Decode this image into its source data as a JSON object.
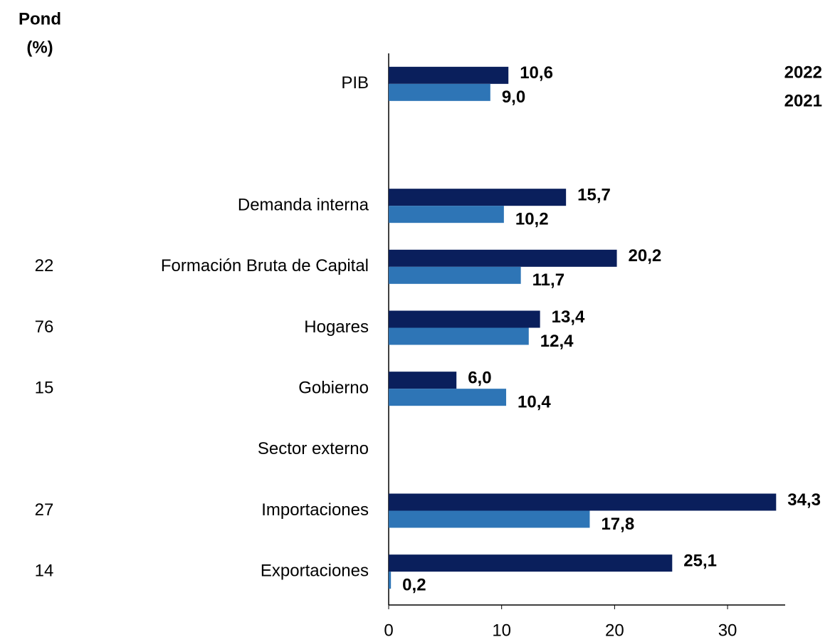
{
  "chart_data": {
    "type": "bar",
    "orientation": "horizontal",
    "weights_title": [
      "Pond",
      "(%)"
    ],
    "categories": [
      "PIB",
      null,
      "Demanda interna",
      "Formación Bruta de Capital",
      "Hogares",
      "Gobierno",
      "Sector externo",
      "Importaciones",
      "Exportaciones"
    ],
    "weights": [
      null,
      null,
      null,
      22,
      76,
      15,
      null,
      27,
      14
    ],
    "series": [
      {
        "name": "2022",
        "color": "#0a1f5c",
        "values": [
          10.6,
          null,
          15.7,
          20.2,
          13.4,
          6.0,
          null,
          34.3,
          25.1
        ],
        "value_labels": [
          "10,6",
          null,
          "15,7",
          "20,2",
          "13,4",
          "6,0",
          null,
          "34,3",
          "25,1"
        ]
      },
      {
        "name": "2021",
        "color": "#2e75b6",
        "values": [
          9.0,
          null,
          10.2,
          11.7,
          12.4,
          10.4,
          null,
          17.8,
          0.2
        ],
        "value_labels": [
          "9,0",
          null,
          "10,2",
          "11,7",
          "12,4",
          "10,4",
          null,
          "17,8",
          "0,2"
        ]
      }
    ],
    "xlim": [
      0,
      35.1
    ],
    "xticks": [
      0,
      10,
      20,
      30
    ],
    "grid": false,
    "legend": "top-right"
  }
}
